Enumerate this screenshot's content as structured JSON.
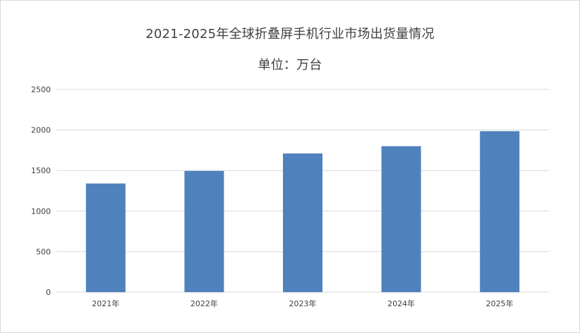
{
  "chart_data": {
    "type": "bar",
    "title": "2021-2025年全球折叠屏手机行业市场出货量情况",
    "subtitle": "单位：万台",
    "categories": [
      "2021年",
      "2022年",
      "2023年",
      "2024年",
      "2025年"
    ],
    "values": [
      1340,
      1495,
      1710,
      1800,
      1985
    ],
    "ylim": [
      0,
      2500
    ],
    "yticks": [
      0,
      500,
      1000,
      1500,
      2000,
      2500
    ],
    "grid": true,
    "legend": "none",
    "colors": {
      "bar": "#4f81bd",
      "grid": "#d9d9d9",
      "text": "#404040"
    }
  }
}
